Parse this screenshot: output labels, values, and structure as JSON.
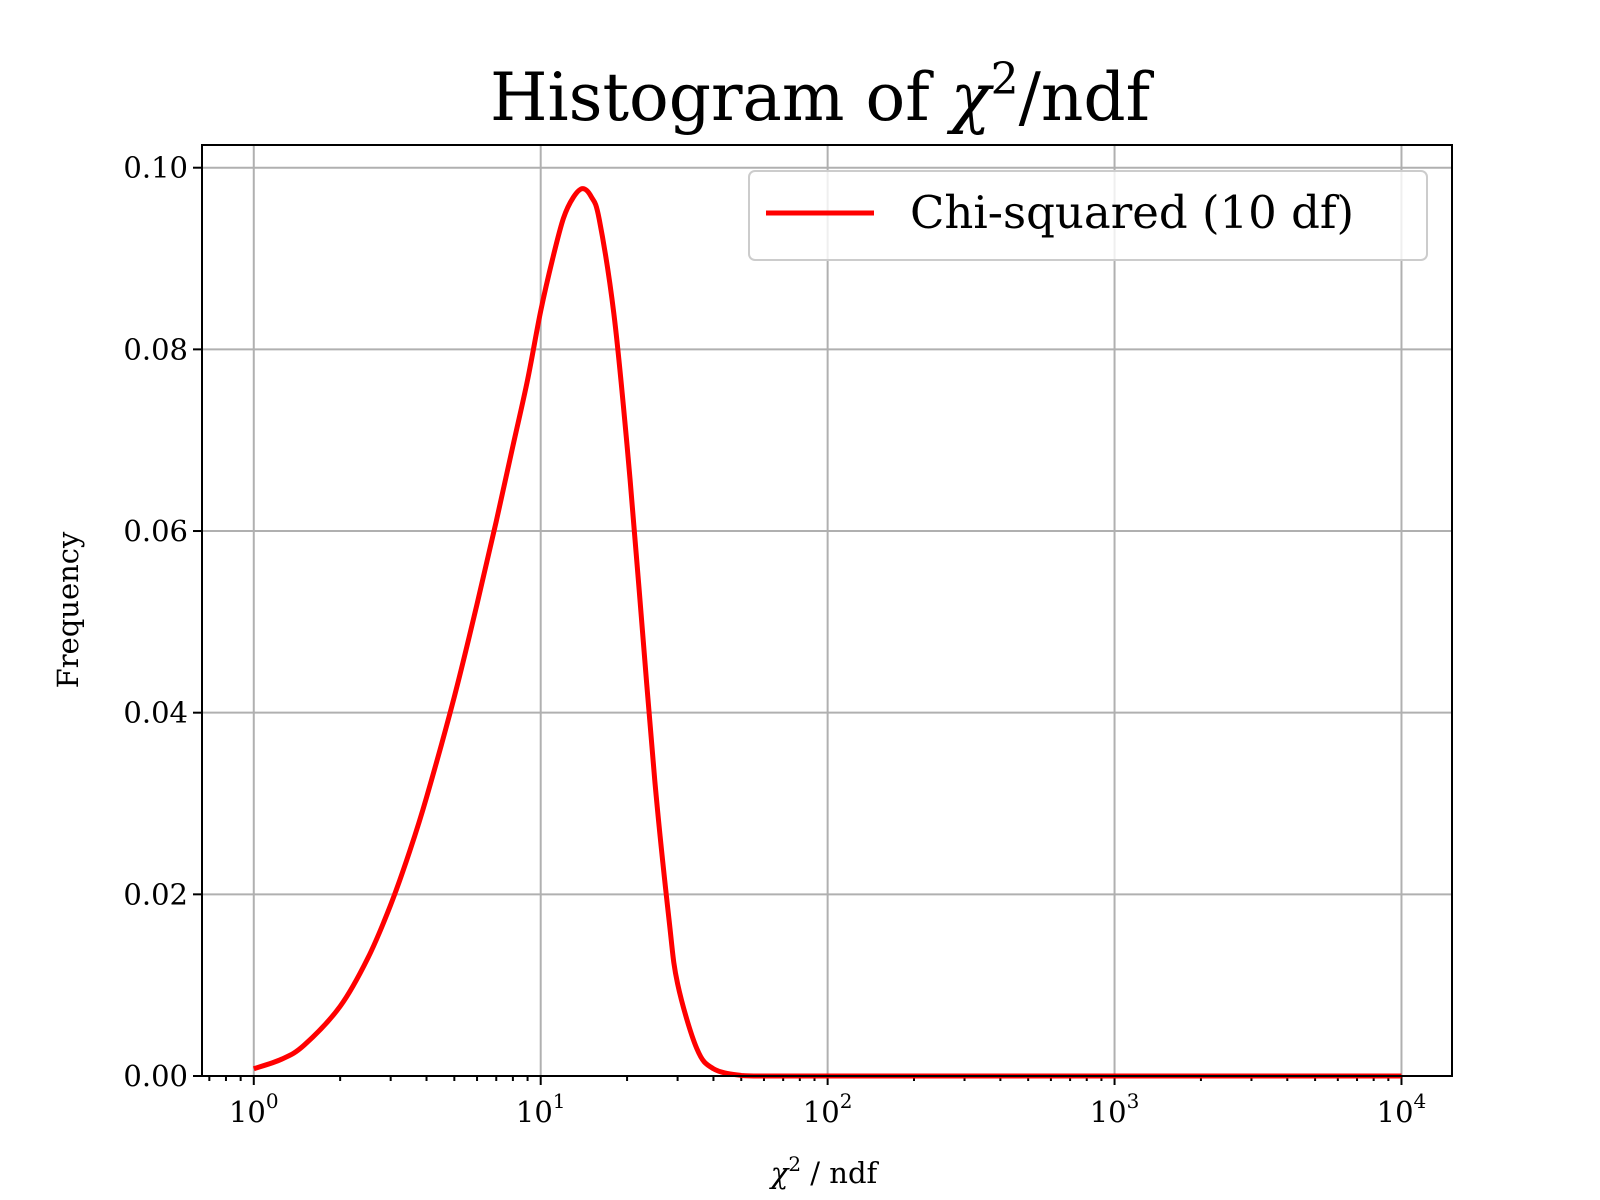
{
  "chart_data": {
    "type": "line",
    "title": "Histogram of χ2/ndf",
    "title_main": "Histogram of ",
    "title_chi": "χ",
    "title_sup": "2",
    "title_rest": "/ndf",
    "xlabel": "χ2 / ndf",
    "xlabel_chi": "χ",
    "xlabel_sup": "2",
    "xlabel_rest": " / ndf",
    "ylabel": "Frequency",
    "x_scale": "log",
    "xlim": [
      0.66,
      15000
    ],
    "ylim": [
      0,
      0.1025
    ],
    "x_ticks": [
      {
        "value": 1,
        "base": "10",
        "exp": "0"
      },
      {
        "value": 10,
        "base": "10",
        "exp": "1"
      },
      {
        "value": 100,
        "base": "10",
        "exp": "2"
      },
      {
        "value": 1000,
        "base": "10",
        "exp": "3"
      },
      {
        "value": 10000,
        "base": "10",
        "exp": "4"
      }
    ],
    "y_ticks": [
      {
        "value": 0.0,
        "label": "0.00"
      },
      {
        "value": 0.02,
        "label": "0.02"
      },
      {
        "value": 0.04,
        "label": "0.04"
      },
      {
        "value": 0.06,
        "label": "0.06"
      },
      {
        "value": 0.08,
        "label": "0.08"
      },
      {
        "value": 0.1,
        "label": "0.10"
      }
    ],
    "grid": true,
    "legend_position": "top-right",
    "series": [
      {
        "name": "Chi-squared (10 df)",
        "color": "#ff0000",
        "x": [
          1,
          1.25,
          1.5,
          2,
          2.5,
          3,
          3.5,
          4,
          5,
          6,
          7,
          8,
          9,
          10,
          11,
          12,
          13,
          14,
          15,
          16,
          18,
          20,
          22,
          25,
          28,
          30,
          35,
          40,
          50,
          60,
          80,
          100,
          200,
          500,
          1000,
          2000,
          5000,
          10000
        ],
        "y": [
          0.0008,
          0.00185,
          0.00341,
          0.00767,
          0.013,
          0.01885,
          0.02481,
          0.03067,
          0.04176,
          0.05196,
          0.06107,
          0.06936,
          0.07664,
          0.08422,
          0.08995,
          0.09443,
          0.09675,
          0.0977,
          0.09681,
          0.0943,
          0.08385,
          0.0694,
          0.05381,
          0.0324,
          0.01724,
          0.01016,
          0.00302,
          0.0008,
          6e-05,
          0.0,
          0.0,
          0.0,
          0.0,
          0.0,
          0.0,
          0.0,
          0.0,
          0.0
        ]
      }
    ]
  }
}
